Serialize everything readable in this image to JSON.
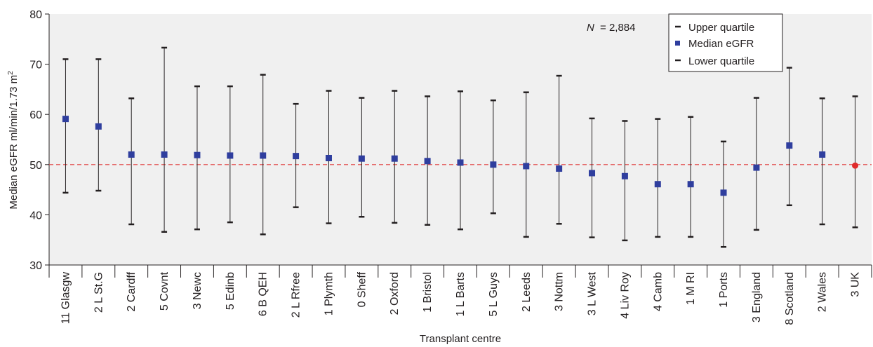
{
  "chart_data": {
    "type": "scatter",
    "xlabel": "Transplant centre",
    "ylabel": "Median eGFR ml/min/1.73 m",
    "ylabel_superscript": "2",
    "ylim": [
      30,
      80
    ],
    "yticks": [
      30,
      40,
      50,
      60,
      70,
      80
    ],
    "grid": false,
    "reference_line": {
      "y": 50,
      "color": "#e03a3a",
      "style": "dashed"
    },
    "annotation": {
      "n_label": "N",
      "n_value": "= 2,884"
    },
    "legend": {
      "position": "top-right",
      "items": [
        "Upper quartile",
        "Median eGFR",
        "Lower quartile"
      ]
    },
    "categories": [
      "11 Glasgw",
      "2 L St.G",
      "2 Cardff",
      "5 Covnt",
      "3 Newc",
      "5 Edinb",
      "6 B QEH",
      "2 L Rfree",
      "1 Plymth",
      "0 Sheff",
      "2 Oxford",
      "1 Bristol",
      "1 L Barts",
      "5 L Guys",
      "2 Leeds",
      "3 Nottm",
      "3 L West",
      "4 Liv Roy",
      "4 Camb",
      "1 M RI",
      "1 Ports",
      "3 England",
      "8 Scotland",
      "2 Wales",
      "3 UK"
    ],
    "series": [
      {
        "name": "Upper quartile",
        "values": [
          71.0,
          71.0,
          63.2,
          73.3,
          65.6,
          65.6,
          67.9,
          62.1,
          64.7,
          63.3,
          64.7,
          63.6,
          64.6,
          62.8,
          64.4,
          67.7,
          59.2,
          58.7,
          59.1,
          59.5,
          54.6,
          63.3,
          69.3,
          63.2,
          63.6
        ]
      },
      {
        "name": "Median eGFR",
        "values": [
          59.1,
          57.6,
          52.0,
          52.0,
          51.9,
          51.8,
          51.8,
          51.7,
          51.3,
          51.2,
          51.2,
          50.7,
          50.4,
          50.0,
          49.7,
          49.2,
          48.3,
          47.7,
          46.1,
          46.1,
          44.4,
          49.4,
          53.8,
          52.0,
          49.8
        ]
      },
      {
        "name": "Lower quartile",
        "values": [
          44.4,
          44.8,
          38.1,
          36.6,
          37.1,
          38.5,
          36.1,
          41.5,
          38.3,
          39.6,
          38.4,
          38.0,
          37.1,
          40.3,
          35.6,
          38.2,
          35.5,
          34.9,
          35.6,
          35.6,
          33.6,
          37.0,
          41.9,
          38.1,
          37.5
        ]
      }
    ],
    "colors": {
      "median": "#2f3e9e",
      "highlight": "#e02b2b",
      "axis": "#231f20",
      "plot_bg": "#f0f0f0",
      "refline": "#e03a3a"
    },
    "highlight_index": 24
  }
}
